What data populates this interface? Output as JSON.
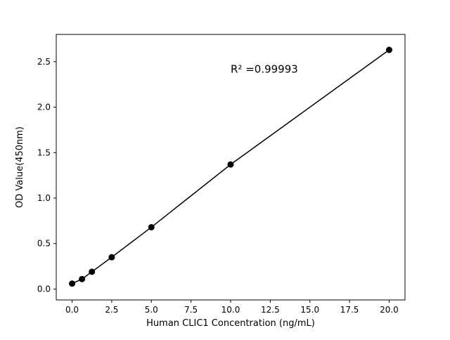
{
  "chart_data": {
    "type": "scatter",
    "title": "",
    "xlabel": "Human CLIC1 Concentration (ng/mL)",
    "ylabel": "OD Value(450nm)",
    "x": [
      0,
      0.625,
      1.25,
      2.5,
      5,
      10,
      20
    ],
    "y": [
      0.06,
      0.11,
      0.19,
      0.35,
      0.68,
      1.37,
      2.63
    ],
    "annotation": {
      "text": "R² =0.99993",
      "x": 10.0,
      "y": 2.38
    },
    "xlim": [
      -1,
      21
    ],
    "ylim": [
      -0.12,
      2.8
    ],
    "xticks": [
      0.0,
      2.5,
      5.0,
      7.5,
      10.0,
      12.5,
      15.0,
      17.5,
      20.0
    ],
    "yticks": [
      0.0,
      0.5,
      1.0,
      1.5,
      2.0,
      2.5
    ],
    "x_tick_decimals": 1,
    "y_tick_decimals": 1,
    "line_color": "#000000",
    "marker_color": "#000000",
    "frame_color": "#000000",
    "background": "#ffffff",
    "grid": false,
    "legend": null
  }
}
